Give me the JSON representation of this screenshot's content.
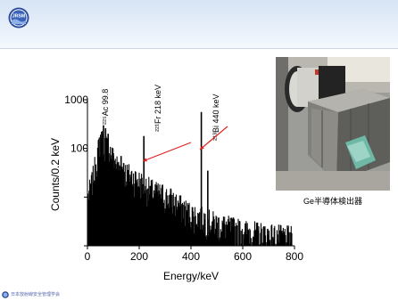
{
  "header": {
    "logo_text": "JRSM"
  },
  "photo": {
    "caption": "Ge半導体検出器"
  },
  "footer": {
    "org_text": "日本放射線安全管理学会"
  },
  "colors": {
    "spectrum": "#000000",
    "arrow": "#e02020",
    "header_band": "#dce8f6",
    "logo_blue": "#2a4a9a"
  },
  "chart_data": {
    "type": "bar",
    "xlabel": "Energy/keV",
    "ylabel": "Counts/0.2 keV",
    "xlim": [
      0,
      800
    ],
    "ylim": [
      1,
      1000
    ],
    "y_scale": "log",
    "x_ticks": [
      0,
      200,
      400,
      600,
      800
    ],
    "x_tick_labels": [
      "0",
      "200",
      "400",
      "600",
      "800"
    ],
    "y_ticks": [
      1,
      10,
      100,
      1000
    ],
    "y_tick_labels": [
      "",
      "",
      "100",
      "1000"
    ],
    "baseline": [
      {
        "x": 0,
        "y": 8
      },
      {
        "x": 20,
        "y": 20
      },
      {
        "x": 50,
        "y": 140
      },
      {
        "x": 80,
        "y": 90
      },
      {
        "x": 120,
        "y": 35
      },
      {
        "x": 180,
        "y": 22
      },
      {
        "x": 250,
        "y": 12
      },
      {
        "x": 320,
        "y": 8
      },
      {
        "x": 400,
        "y": 4
      },
      {
        "x": 500,
        "y": 2.5
      },
      {
        "x": 600,
        "y": 1.8
      },
      {
        "x": 700,
        "y": 1.5
      },
      {
        "x": 790,
        "y": 1.3
      }
    ],
    "peaks": [
      {
        "x": 55,
        "y": 220
      },
      {
        "x": 62,
        "y": 300
      },
      {
        "x": 70,
        "y": 260
      },
      {
        "x": 80,
        "y": 200
      },
      {
        "x": 100,
        "y": 80
      },
      {
        "x": 130,
        "y": 70
      },
      {
        "x": 140,
        "y": 50
      },
      {
        "x": 218,
        "y": 180
      },
      {
        "x": 290,
        "y": 18
      },
      {
        "x": 322,
        "y": 15
      },
      {
        "x": 440,
        "y": 560
      },
      {
        "x": 465,
        "y": 35
      }
    ],
    "annotations": [
      {
        "text": "²²⁵Ac 99.8",
        "x": 99.8
      },
      {
        "text": "²²¹Fr 218 keV",
        "x": 218
      },
      {
        "text": "²¹³Bi 440 keV",
        "x": 440
      }
    ]
  }
}
